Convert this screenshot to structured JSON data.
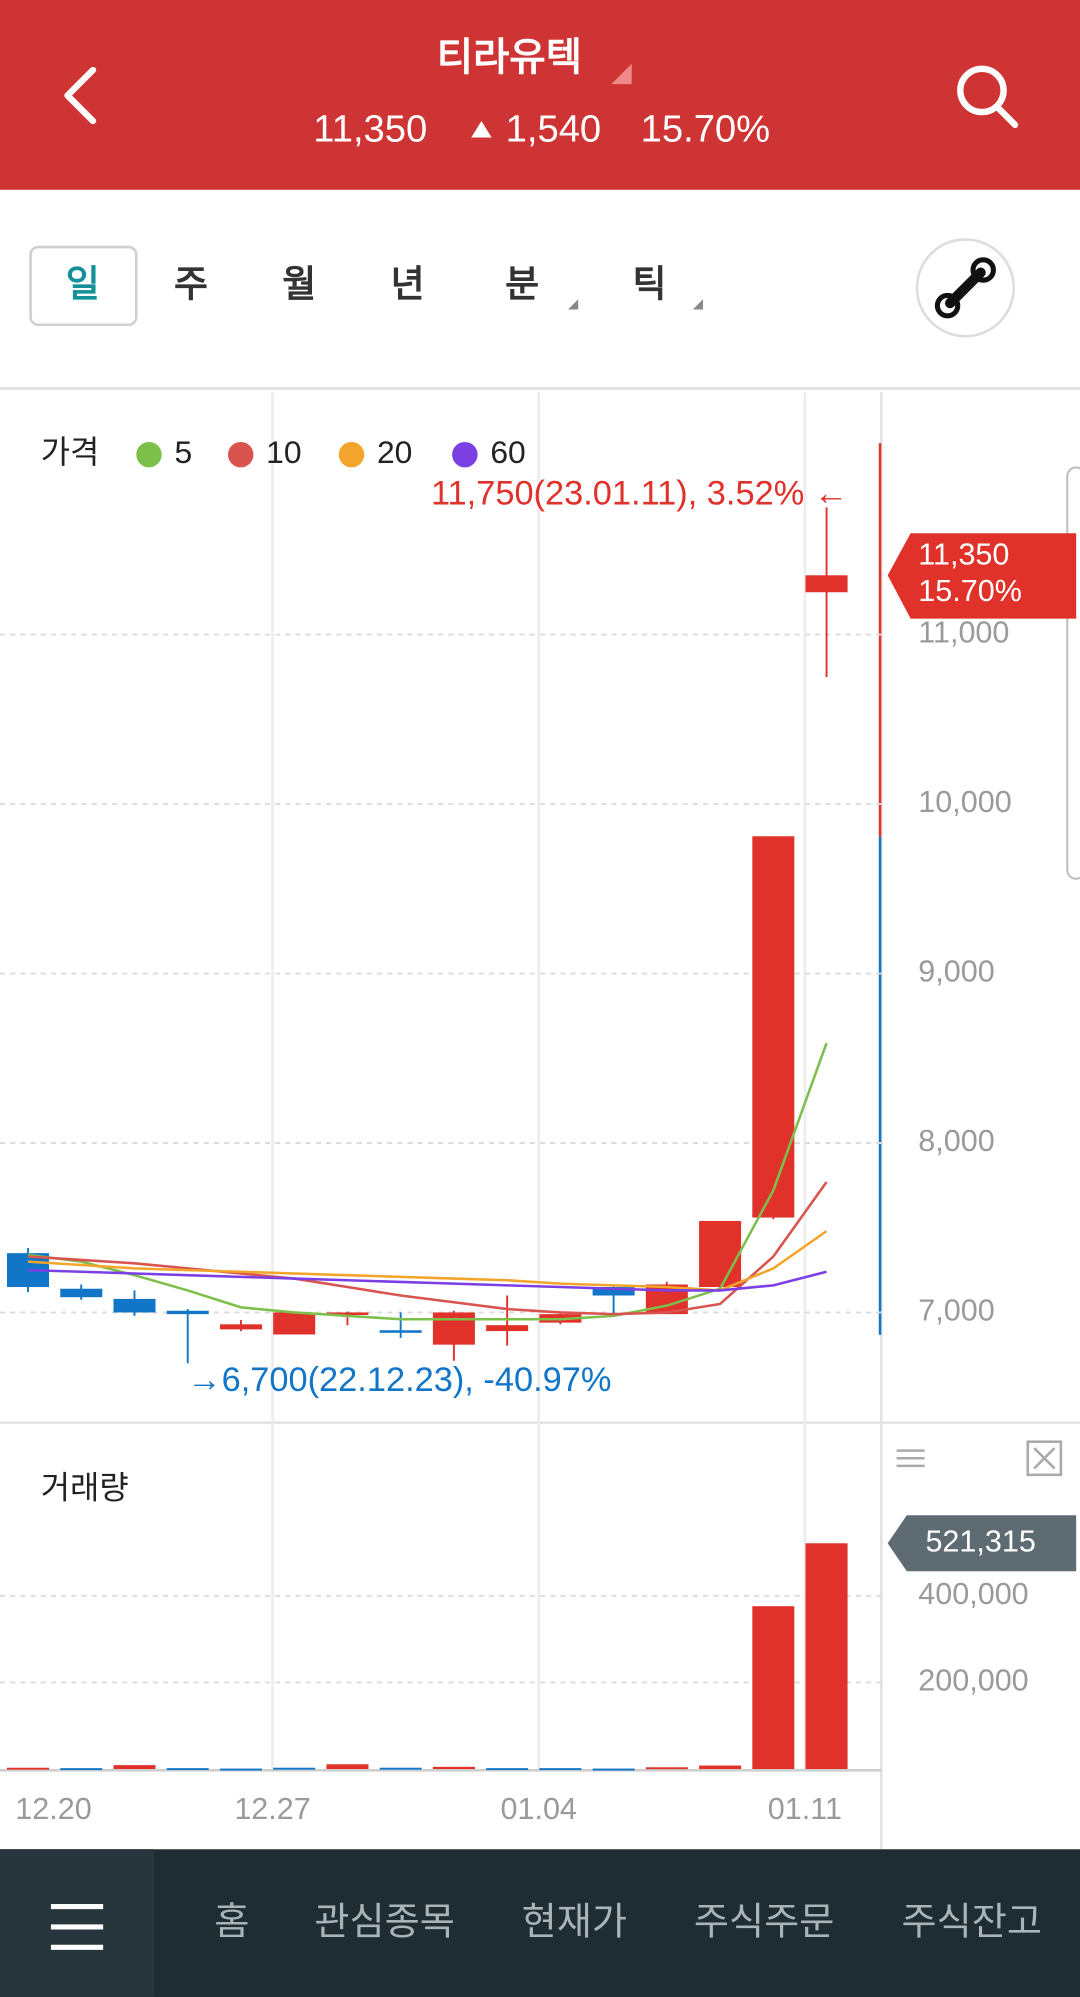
{
  "header": {
    "title": "티라유텍",
    "price": "11,350",
    "change": "1,540",
    "change_rate": "15.70%"
  },
  "period_tabs": [
    "일",
    "주",
    "월",
    "년",
    "분",
    "틱"
  ],
  "selected_tab": 0,
  "chart_data": [
    {
      "type": "candlestick",
      "legend_title": "가격",
      "open": [
        7350,
        7140,
        7080,
        7010,
        6900,
        6870,
        6995,
        6895,
        6810,
        6890,
        6940,
        7150,
        6990,
        7150,
        7560,
        11250
      ],
      "high": [
        7380,
        7165,
        7130,
        7020,
        6955,
        7000,
        7005,
        7000,
        7010,
        7100,
        7000,
        7160,
        7180,
        7540,
        9810,
        11750
      ],
      "low": [
        7120,
        7075,
        6980,
        6700,
        6890,
        6870,
        6925,
        6850,
        6715,
        6805,
        6930,
        6990,
        6990,
        7130,
        7550,
        10750
      ],
      "close": [
        7150,
        7090,
        7000,
        6990,
        6930,
        7000,
        7000,
        6880,
        7000,
        6925,
        6990,
        7100,
        7165,
        7540,
        9810,
        11350
      ],
      "up_color": "#e0312a",
      "down_color": "#1176c8",
      "series": [
        {
          "name": "5",
          "color": "#7cc04b",
          "values": [
            7340,
            7300,
            7220,
            7130,
            7030,
            7000,
            6980,
            6960,
            6960,
            6960,
            6960,
            6980,
            7040,
            7140,
            7720,
            8590
          ]
        },
        {
          "name": "10",
          "color": "#d9534f",
          "values": [
            7330,
            7310,
            7290,
            7260,
            7230,
            7200,
            7150,
            7100,
            7060,
            7020,
            7000,
            6990,
            7000,
            7050,
            7330,
            7770
          ]
        },
        {
          "name": "20",
          "color": "#f2a52a",
          "values": [
            7300,
            7280,
            7260,
            7250,
            7240,
            7230,
            7220,
            7210,
            7200,
            7190,
            7170,
            7160,
            7150,
            7130,
            7260,
            7480
          ]
        },
        {
          "name": "60",
          "color": "#7b3fe4",
          "values": [
            7250,
            7240,
            7230,
            7220,
            7210,
            7200,
            7190,
            7180,
            7170,
            7160,
            7150,
            7140,
            7130,
            7130,
            7160,
            7240
          ]
        }
      ],
      "annotations": [
        "11,750(23.01.11), 3.52% ←",
        "→6,700(22.12.23), -40.97%"
      ],
      "price_tag": {
        "value": 11350,
        "label": "11,350",
        "rate": "15.70%"
      },
      "ylim": [
        6350,
        12430
      ],
      "yticks": [
        {
          "value": 7000,
          "label": "7,000"
        },
        {
          "value": 8000,
          "label": "8,000"
        },
        {
          "value": 9000,
          "label": "9,000"
        },
        {
          "value": 10000,
          "label": "10,000"
        },
        {
          "value": 11000,
          "label": "11,000"
        }
      ],
      "grid": true
    },
    {
      "type": "bar",
      "title": "거래량",
      "categories": [
        "12.20",
        null,
        null,
        null,
        null,
        "12.27",
        null,
        null,
        null,
        null,
        "01.04",
        null,
        null,
        null,
        null,
        "01.11"
      ],
      "values": [
        3000,
        2000,
        9000,
        2000,
        1000,
        3000,
        11000,
        3000,
        5000,
        2000,
        2000,
        1000,
        4000,
        8000,
        376000,
        521315
      ],
      "colors": [
        "#e0312a",
        "#1176c8",
        "#e0312a",
        "#1176c8",
        "#1176c8",
        "#1176c8",
        "#e0312a",
        "#1176c8",
        "#e0312a",
        "#1176c8",
        "#1176c8",
        "#1176c8",
        "#e0312a",
        "#e0312a",
        "#e0312a",
        "#e0312a"
      ],
      "last_tag": {
        "value": 521315,
        "label": "521,315"
      },
      "ylim": [
        0,
        800000
      ],
      "yticks": [
        {
          "value": 200000,
          "label": "200,000"
        },
        {
          "value": 400000,
          "label": "400,000"
        }
      ],
      "grid": true
    }
  ],
  "nav": [
    "홈",
    "관심종목",
    "현재가",
    "주식주문",
    "주식잔고"
  ]
}
